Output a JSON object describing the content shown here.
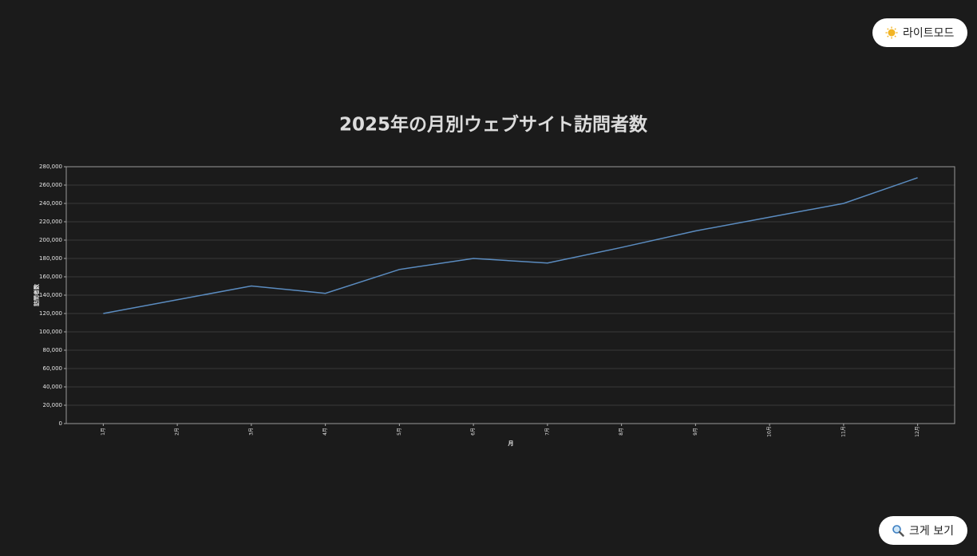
{
  "chart_data": {
    "type": "line",
    "title": "2025年の月別ウェブサイト訪問者数",
    "x_label": "月",
    "y_label": "訪問者数",
    "categories": [
      "1月",
      "2月",
      "3月",
      "4月",
      "5月",
      "6月",
      "7月",
      "8月",
      "9月",
      "10月",
      "11月",
      "12月"
    ],
    "values": [
      120000,
      135000,
      150000,
      142000,
      168000,
      180000,
      175000,
      192000,
      210000,
      225000,
      240000,
      268000
    ],
    "color": "#5b8cc0",
    "ylim": [
      0,
      280000
    ],
    "yticks": [
      0,
      {
        "value": 20000,
        "label": "20,000"
      },
      {
        "value": 40000,
        "label": "40,000"
      },
      {
        "value": 60000,
        "label": "60,000"
      },
      {
        "value": 80000,
        "label": "80,000"
      },
      {
        "value": 100000,
        "label": "100,000"
      },
      {
        "value": 120000,
        "label": "120,000"
      },
      {
        "value": 140000,
        "label": "140,000"
      },
      {
        "value": 160000,
        "label": "160,000"
      },
      {
        "value": 180000,
        "label": "180,000"
      },
      {
        "value": 200000,
        "label": "200,000"
      },
      {
        "value": 220000,
        "label": "220,000"
      },
      {
        "value": 240000,
        "label": "240,000"
      },
      {
        "value": 260000,
        "label": "260,000"
      },
      {
        "value": 280000,
        "label": "280,000"
      }
    ],
    "grid": true
  },
  "ui": {
    "theme_button": "라이트모드",
    "zoom_button": "크게 보기"
  }
}
